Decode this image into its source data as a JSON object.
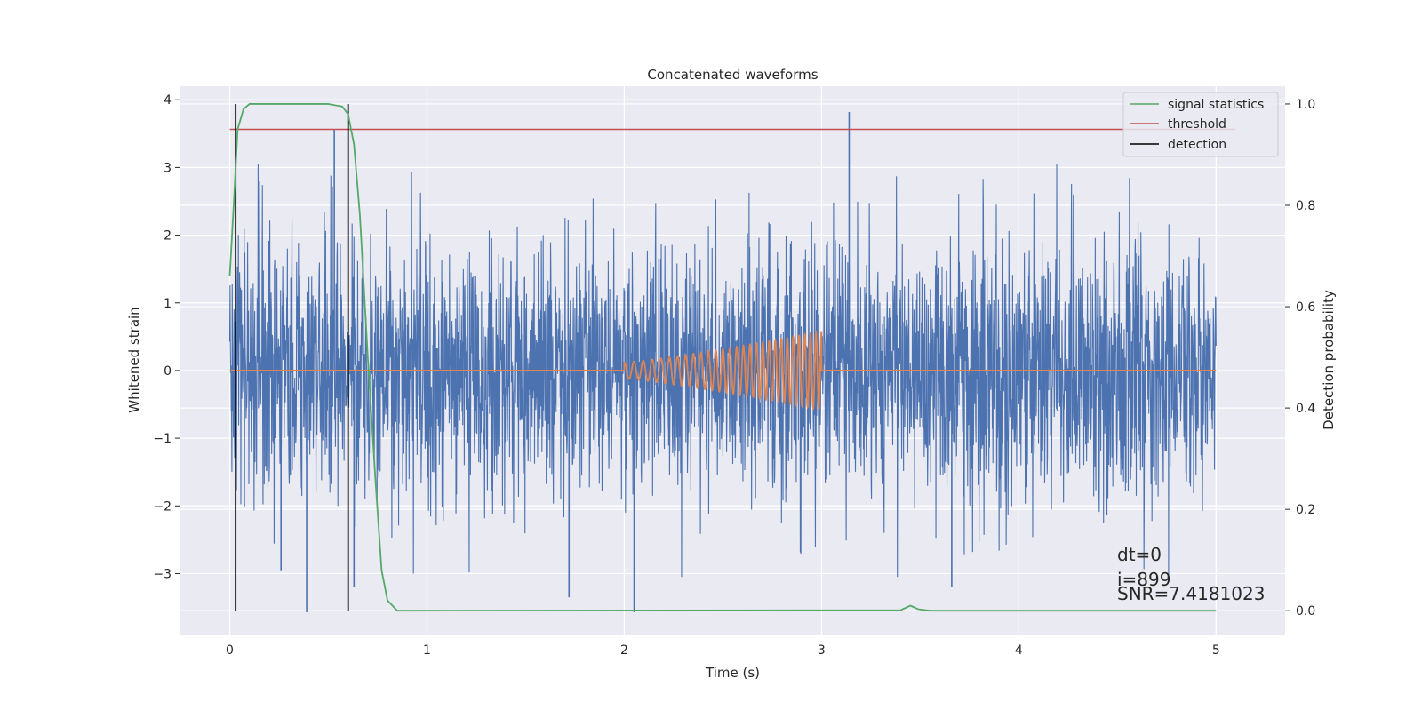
{
  "chart_data": {
    "type": "line",
    "title": "Concatenated waveforms",
    "xlabel": "Time (s)",
    "ylabel": "Whitened strain",
    "ylabel_right": "Detection probability",
    "xlim": [
      -0.25,
      5.35
    ],
    "ylim": [
      -3.9,
      4.2
    ],
    "ylim_right": [
      -0.047,
      1.035
    ],
    "xticks": [
      0,
      1,
      2,
      3,
      4,
      5
    ],
    "yticks": [
      -3,
      -2,
      -1,
      0,
      1,
      2,
      3,
      4
    ],
    "yticks_right": [
      0.0,
      0.2,
      0.4,
      0.6,
      0.8,
      1.0
    ],
    "grid": true,
    "background": "#eaeaf2",
    "legend_position": "top-right",
    "series": [
      {
        "name": "",
        "axis": "left",
        "color": "#4c72b0",
        "description": "whitened strain noise, approx gaussian with std ~0.9, range 0 to 5 s",
        "x_range": [
          0,
          5
        ],
        "notable_spikes": [
          [
            0.53,
            3.57
          ],
          [
            3.14,
            3.82
          ],
          [
            0.39,
            -3.57
          ],
          [
            2.05,
            -3.57
          ],
          [
            1.72,
            -3.35
          ],
          [
            3.66,
            -3.2
          ],
          [
            0.26,
            -2.95
          ],
          [
            0.63,
            -3.2
          ]
        ]
      },
      {
        "name": "",
        "axis": "left",
        "color": "#dd8452",
        "description": "injected chirp waveform, zero outside 2-3 s, frequency and amplitude increase toward 3 s",
        "x_range": [
          0,
          5
        ],
        "chirp_start": 2.0,
        "chirp_end": 3.0,
        "amplitude_start": 0.12,
        "amplitude_end": 0.58
      },
      {
        "name": "signal statistics",
        "axis": "right",
        "color": "#55a868",
        "points": [
          [
            0,
            0.66
          ],
          [
            0.02,
            0.8
          ],
          [
            0.04,
            0.95
          ],
          [
            0.07,
            0.99
          ],
          [
            0.1,
            1.0
          ],
          [
            0.5,
            1.0
          ],
          [
            0.57,
            0.995
          ],
          [
            0.6,
            0.98
          ],
          [
            0.63,
            0.92
          ],
          [
            0.66,
            0.78
          ],
          [
            0.7,
            0.5
          ],
          [
            0.74,
            0.25
          ],
          [
            0.77,
            0.08
          ],
          [
            0.8,
            0.02
          ],
          [
            0.85,
            0.0
          ],
          [
            3.4,
            0.001
          ],
          [
            3.45,
            0.01
          ],
          [
            3.49,
            0.003
          ],
          [
            3.55,
            0.0
          ],
          [
            5.0,
            0.0
          ]
        ]
      },
      {
        "name": "threshold",
        "axis": "right",
        "color": "#c44e52",
        "value": 0.95,
        "x_range": [
          0,
          5.1
        ]
      },
      {
        "name": "detection",
        "axis": "right",
        "color": "#000000",
        "x_values": [
          0.03,
          0.6
        ],
        "y_range": [
          0.0,
          1.0
        ]
      }
    ],
    "annotations": [
      "dt=0",
      "i=899",
      "SNR=7.4181023"
    ]
  }
}
